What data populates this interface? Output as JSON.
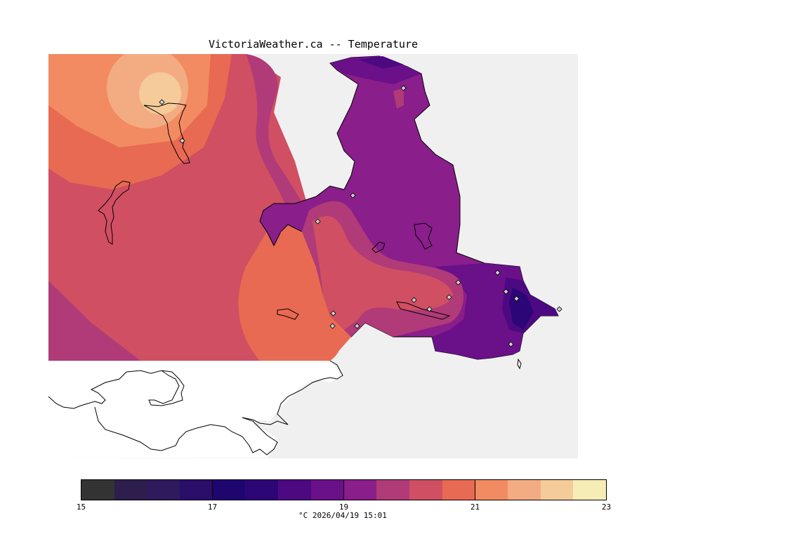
{
  "title": "VictoriaWeather.ca -- Temperature",
  "colorbar": {
    "min": 15,
    "max": 23,
    "tick_labels": [
      "15",
      "17",
      "19",
      "21",
      "23"
    ],
    "caption": "°C  2026/04/19 15:01",
    "colors": [
      "#333333",
      "#2d1e4d",
      "#2e1a5c",
      "#2a0e6a",
      "#1e0570",
      "#2c0676",
      "#4c0982",
      "#6a1089",
      "#8a1e8a",
      "#b03b78",
      "#d04f63",
      "#e86a52",
      "#f28b62",
      "#f3ac82",
      "#f4cb99",
      "#f6ecb6"
    ]
  },
  "map": {
    "background_color": "#f0f0f0",
    "land_unanalyzed_color": "#ffffff"
  }
}
